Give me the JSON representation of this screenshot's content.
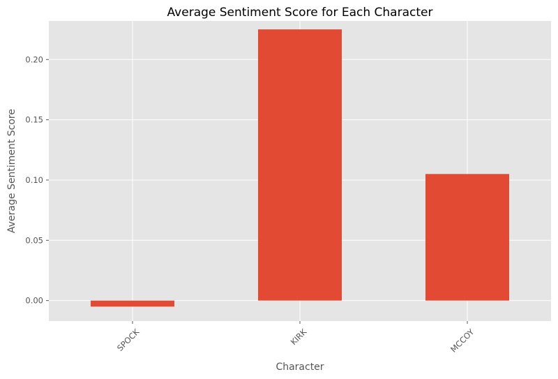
{
  "chart_data": {
    "type": "bar",
    "title": "Average Sentiment Score for Each Character",
    "xlabel": "Character",
    "ylabel": "Average Sentiment Score",
    "categories": [
      "SPOCK",
      "KIRK",
      "MCCOY"
    ],
    "values": [
      -0.005,
      0.225,
      0.105
    ],
    "ylim": [
      -0.017,
      0.232
    ],
    "yticks": [
      0.0,
      0.05,
      0.1,
      0.15,
      0.2
    ],
    "ytick_labels": [
      "0.00",
      "0.05",
      "0.10",
      "0.15",
      "0.20"
    ],
    "grid": true,
    "legend": "none",
    "colors": {
      "bar": "#E24A33",
      "plot_background": "#E5E5E5",
      "grid": "#FFFFFF",
      "text": "#555555"
    }
  }
}
